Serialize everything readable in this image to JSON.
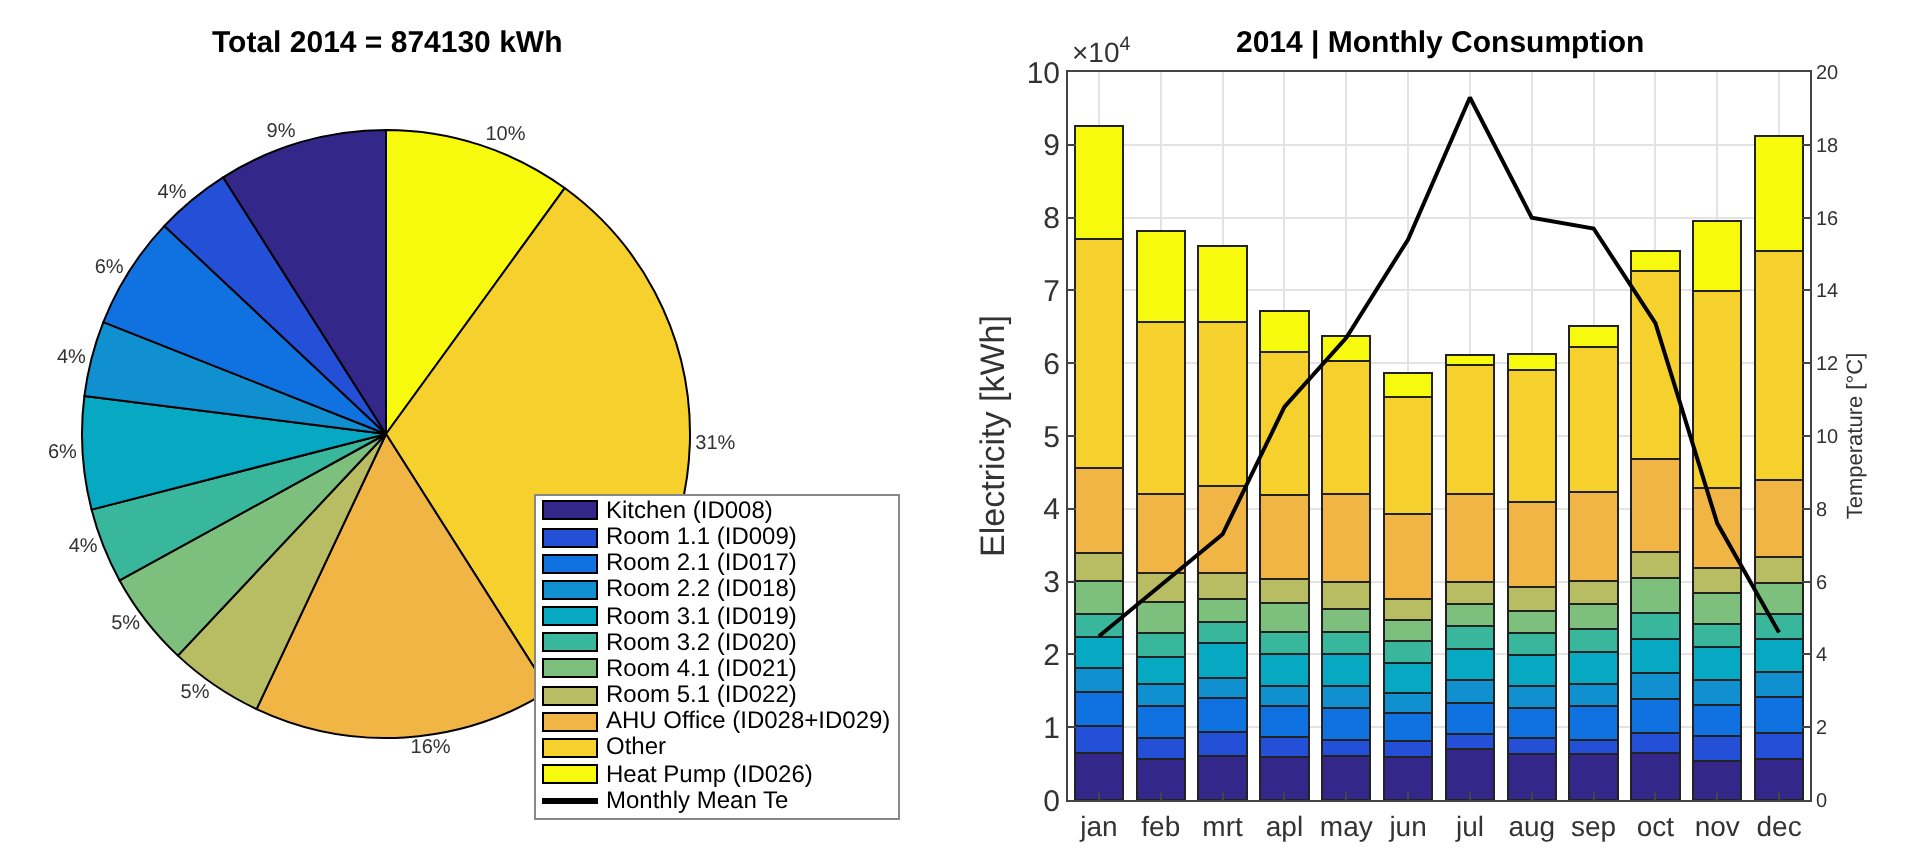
{
  "chart_data": [
    {
      "type": "pie",
      "title": "Total 2014 = 874130 kWh",
      "categories": [
        null,
        null,
        null,
        null,
        null,
        null,
        null,
        null,
        null,
        null,
        null
      ],
      "values": [
        10,
        31,
        16,
        5,
        5,
        4,
        6,
        4,
        6,
        4,
        9
      ],
      "value_labels": [
        "10%",
        "31%",
        "16%",
        "5%",
        "5%",
        "4%",
        "6%",
        "4%",
        "6%",
        "4%",
        "9%"
      ],
      "colors": [
        "#f8fa0d",
        "#f6d02c",
        "#f0b545",
        "#b8bc62",
        "#7dbf7c",
        "#38b79c",
        "#06a8c2",
        "#1190d0",
        "#0f72e0",
        "#2350d6",
        "#33288a"
      ]
    },
    {
      "type": "bar",
      "title": "2014 | Monthly Consumption",
      "ylabel": "Electricity [kWh]",
      "y2label": "Temperature [°C]",
      "annotations": [
        "×10$^{4}$"
      ],
      "categories": [
        "jan",
        "feb",
        "mrt",
        "apl",
        "may",
        "jun",
        "jul",
        "aug",
        "sep",
        "oct",
        "nov",
        "dec"
      ],
      "stacked": true,
      "grid": true,
      "legend": "left",
      "ylim": [
        0,
        10
      ],
      "yticks": [
        0,
        1,
        2,
        3,
        4,
        5,
        6,
        7,
        8,
        9,
        10
      ],
      "y2lim": [
        0,
        20
      ],
      "y2ticks": [
        0,
        2,
        4,
        6,
        8,
        10,
        12,
        14,
        16,
        18,
        20
      ],
      "series": [
        {
          "name": "Kitchen (ID008)",
          "color": "#33288a",
          "values": [
            0.65,
            0.56,
            0.61,
            0.59,
            0.61,
            0.59,
            0.7,
            0.63,
            0.63,
            0.65,
            0.54,
            0.56
          ]
        },
        {
          "name": "Room 1.1 (ID009)",
          "color": "#2350d6",
          "values": [
            0.37,
            0.29,
            0.32,
            0.27,
            0.21,
            0.22,
            0.2,
            0.22,
            0.2,
            0.27,
            0.34,
            0.36
          ]
        },
        {
          "name": "Room 2.1 (ID017)",
          "color": "#0f72e0",
          "values": [
            0.47,
            0.44,
            0.47,
            0.43,
            0.45,
            0.39,
            0.43,
            0.42,
            0.46,
            0.47,
            0.42,
            0.5
          ]
        },
        {
          "name": "Room 2.2 (ID018)",
          "color": "#1190d0",
          "values": [
            0.32,
            0.3,
            0.28,
            0.27,
            0.29,
            0.27,
            0.32,
            0.29,
            0.31,
            0.35,
            0.35,
            0.34
          ]
        },
        {
          "name": "Room 3.1 (ID019)",
          "color": "#06a8c2",
          "values": [
            0.43,
            0.38,
            0.47,
            0.44,
            0.44,
            0.41,
            0.43,
            0.43,
            0.43,
            0.47,
            0.45,
            0.45
          ]
        },
        {
          "name": "Room 3.2 (ID020)",
          "color": "#38b79c",
          "values": [
            0.32,
            0.32,
            0.3,
            0.31,
            0.31,
            0.3,
            0.31,
            0.31,
            0.32,
            0.36,
            0.32,
            0.34
          ]
        },
        {
          "name": "Room 4.1 (ID021)",
          "color": "#7dbf7c",
          "values": [
            0.45,
            0.43,
            0.31,
            0.4,
            0.32,
            0.29,
            0.3,
            0.3,
            0.34,
            0.48,
            0.42,
            0.43
          ]
        },
        {
          "name": "Room 5.1 (ID022)",
          "color": "#b8bc62",
          "values": [
            0.38,
            0.4,
            0.36,
            0.32,
            0.36,
            0.29,
            0.3,
            0.32,
            0.32,
            0.36,
            0.35,
            0.36
          ]
        },
        {
          "name": "AHU Office (ID028+ID029)",
          "color": "#f0b545",
          "values": [
            1.17,
            1.09,
            1.2,
            1.16,
            1.22,
            1.17,
            1.21,
            1.17,
            1.22,
            1.27,
            1.09,
            1.05
          ]
        },
        {
          "name": "Other",
          "color": "#f6d02c",
          "values": [
            3.15,
            2.36,
            2.25,
            1.97,
            1.82,
            1.61,
            1.78,
            1.82,
            1.99,
            2.58,
            2.71,
            3.15
          ]
        },
        {
          "name": "Heat Pump (ID026)",
          "color": "#f8fa0d",
          "values": [
            1.55,
            1.25,
            1.04,
            0.56,
            0.34,
            0.32,
            0.13,
            0.21,
            0.29,
            0.28,
            0.97,
            1.58
          ]
        },
        {
          "name": "Monthly Mean Te",
          "type": "line",
          "axis": "y2",
          "color": "#000000",
          "values": [
            4.5,
            5.9,
            7.3,
            10.8,
            12.7,
            15.4,
            19.3,
            16.0,
            15.7,
            13.1,
            7.6,
            4.6
          ]
        }
      ]
    }
  ]
}
